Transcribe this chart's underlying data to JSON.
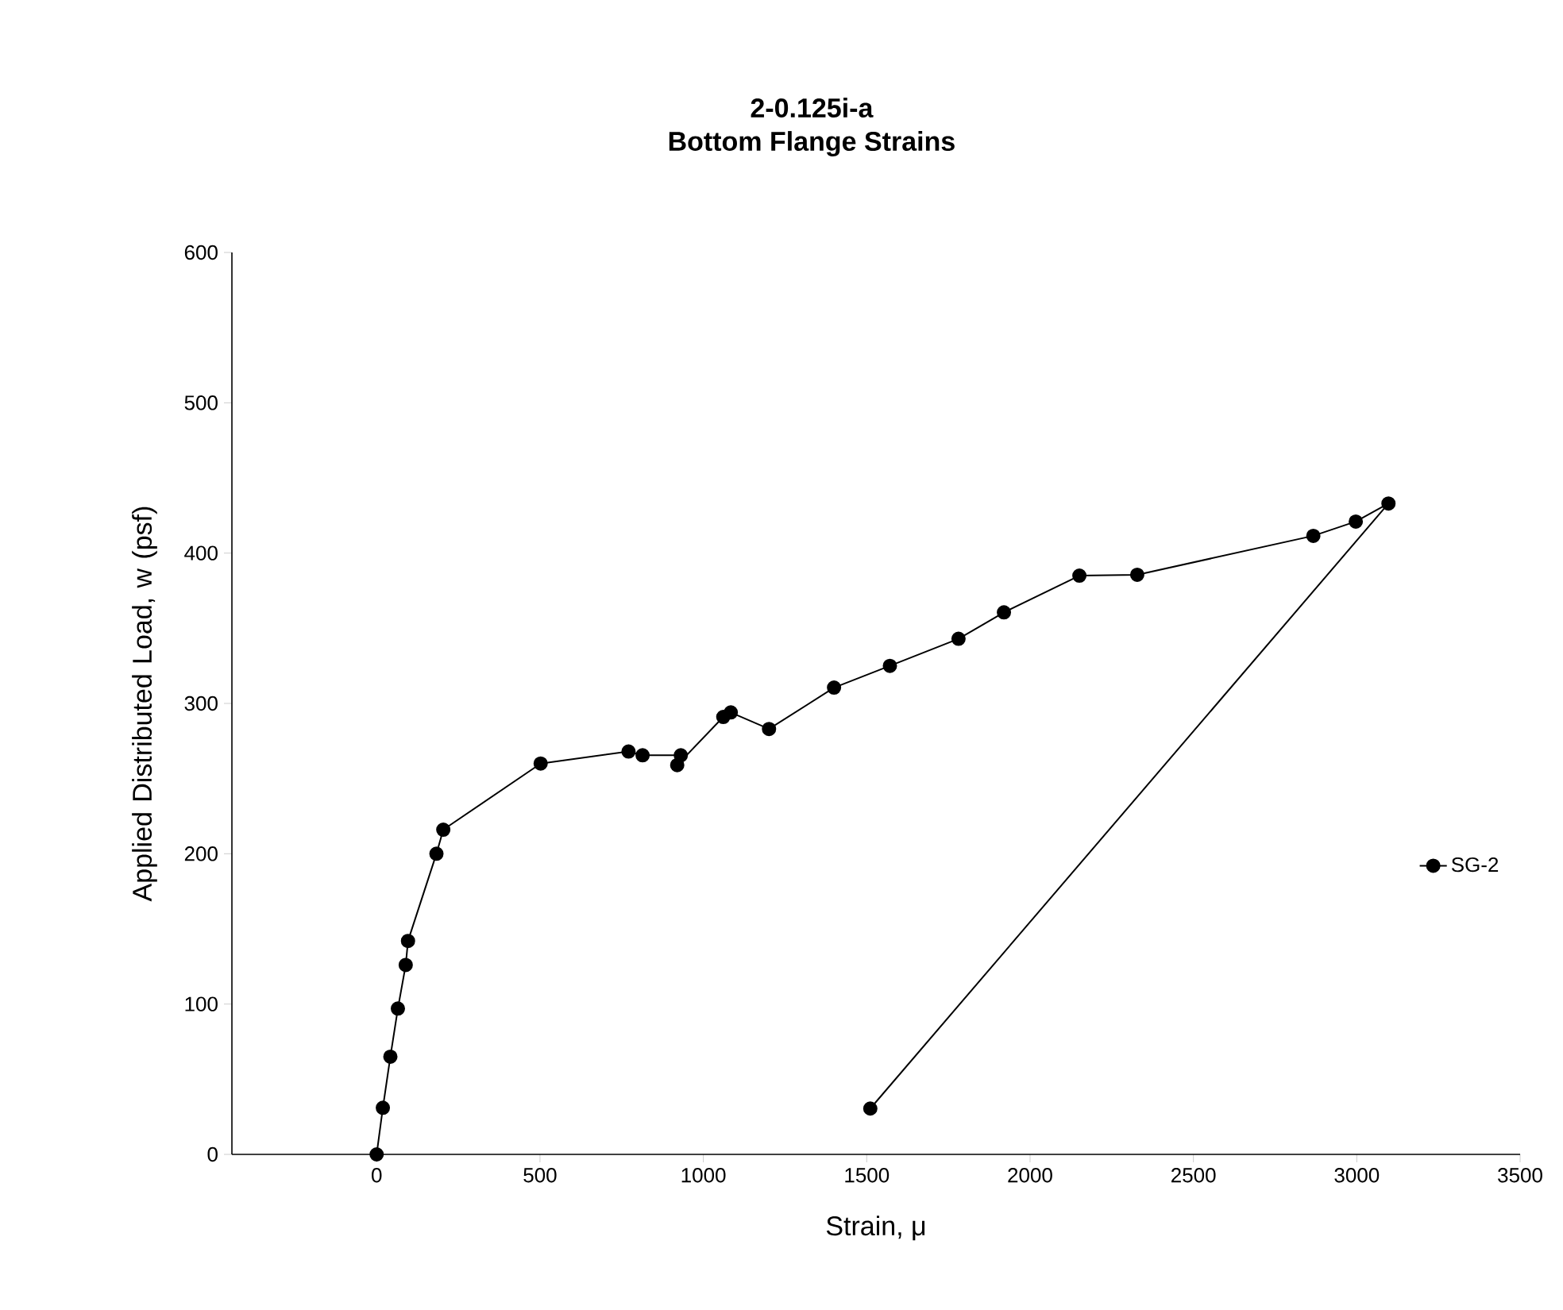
{
  "chart_data": {
    "type": "line",
    "title": "2-0.125i-a",
    "subtitle": "Bottom Flange Strains",
    "xlabel": "Strain, μ",
    "ylabel": "Applied Distributed Load, w (psf)",
    "xlim": [
      -443,
      3500
    ],
    "xticks": [
      0,
      500,
      1000,
      1500,
      2000,
      2500,
      3000,
      3500
    ],
    "ylim": [
      0,
      600
    ],
    "yticks": [
      0,
      100,
      200,
      300,
      400,
      500,
      600
    ],
    "grid": false,
    "legend": "right",
    "marker": "circle",
    "line_style": "solid",
    "series": [
      {
        "name": "SG-2",
        "color": "#000000",
        "x": [
          0,
          19,
          42,
          65,
          89,
          96,
          183,
          204,
          502,
          771,
          814,
          931,
          920,
          1061,
          1084,
          1201,
          1400,
          1571,
          1781,
          1920,
          2151,
          2328,
          2867,
          2997,
          3097,
          1511
        ],
        "values": [
          0,
          31,
          65,
          97,
          126,
          142,
          200,
          216,
          260,
          268,
          265.5,
          265.5,
          259,
          291,
          294,
          283,
          310.5,
          325,
          343,
          360.6,
          385,
          385.6,
          411.5,
          421,
          433,
          30.5
        ]
      }
    ]
  }
}
